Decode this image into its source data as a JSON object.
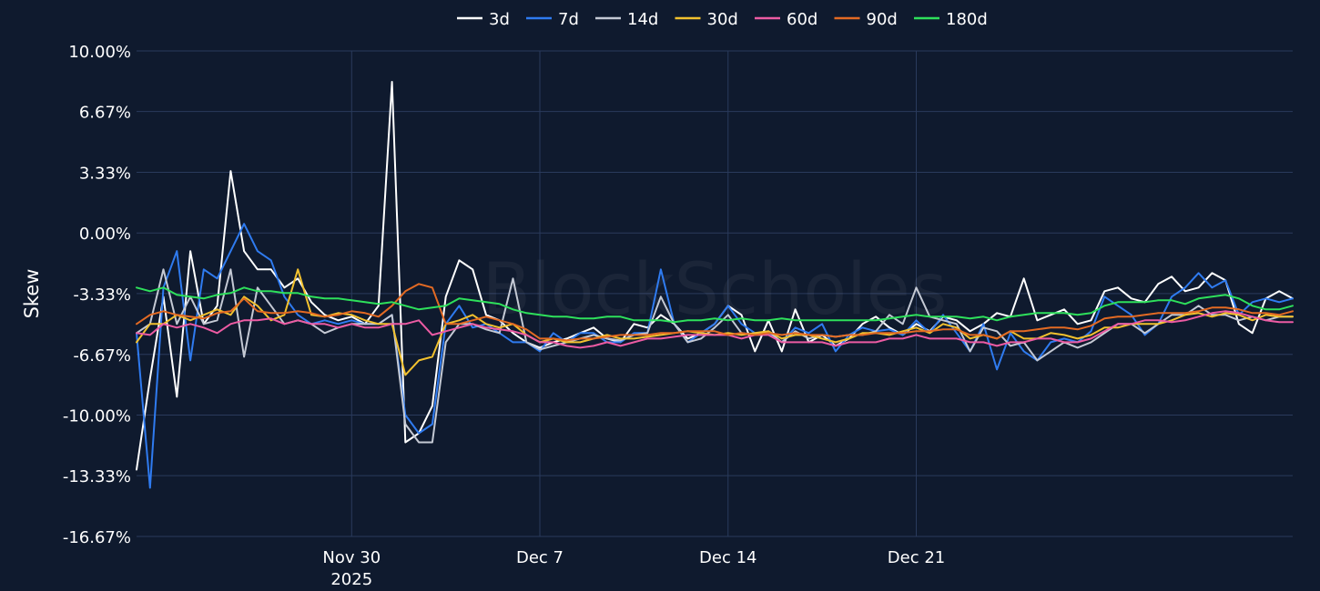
{
  "chart_data": {
    "type": "line",
    "title": "",
    "xlabel": "",
    "ylabel": "Skew",
    "watermark": "BlockScholes",
    "ylim": [
      -16.67,
      10.0
    ],
    "yticks": [
      {
        "value": 10.0,
        "label": "10.00%"
      },
      {
        "value": 6.67,
        "label": "6.67%"
      },
      {
        "value": 3.33,
        "label": "3.33%"
      },
      {
        "value": 0.0,
        "label": "0.00%"
      },
      {
        "value": -3.33,
        "label": "-3.33%"
      },
      {
        "value": -6.67,
        "label": "-6.67%"
      },
      {
        "value": -10.0,
        "label": "-10.00%"
      },
      {
        "value": -13.33,
        "label": "-13.33%"
      },
      {
        "value": -16.67,
        "label": "-16.67%"
      }
    ],
    "xlim_days": [
      -8,
      35
    ],
    "xticks": [
      {
        "day": 0,
        "label": "Nov 30",
        "sublabel": "2025"
      },
      {
        "day": 7,
        "label": "Dec 7",
        "sublabel": ""
      },
      {
        "day": 14,
        "label": "Dec 14",
        "sublabel": ""
      },
      {
        "day": 21,
        "label": "Dec 21",
        "sublabel": ""
      }
    ],
    "x_days": [
      -8,
      -7.5,
      -7,
      -6.5,
      -6,
      -5.5,
      -5,
      -4.5,
      -4,
      -3.5,
      -3,
      -2.5,
      -2,
      -1.5,
      -1,
      -0.5,
      0,
      0.5,
      1,
      1.5,
      2,
      2.5,
      3,
      3.5,
      4,
      4.5,
      5,
      5.5,
      6,
      6.5,
      7,
      7.5,
      8,
      8.5,
      9,
      9.5,
      10,
      10.5,
      11,
      11.5,
      12,
      12.5,
      13,
      13.5,
      14,
      14.5,
      15,
      15.5,
      16,
      16.5,
      17,
      17.5,
      18,
      18.5,
      19,
      19.5,
      20,
      20.5,
      21,
      21.5,
      22,
      22.5,
      23,
      23.5,
      24,
      24.5,
      25,
      25.5,
      26,
      26.5,
      27,
      27.5,
      28,
      28.5,
      29,
      29.5,
      30,
      30.5,
      31,
      31.5,
      32,
      32.5,
      33,
      33.5,
      34,
      34.5,
      35
    ],
    "series": [
      {
        "name": "3d",
        "color": "#ffffff",
        "values": [
          -13.0,
          -8.0,
          -3.5,
          -9.0,
          -1.0,
          -5.0,
          -4.0,
          3.4,
          -1.0,
          -2.0,
          -2.0,
          -3.0,
          -2.5,
          -3.8,
          -4.5,
          -4.8,
          -4.6,
          -5.0,
          -4.0,
          8.3,
          -11.5,
          -11.0,
          -9.5,
          -3.5,
          -1.5,
          -2.0,
          -4.5,
          -4.8,
          -5.5,
          -6.0,
          -6.3,
          -6.0,
          -5.8,
          -5.5,
          -5.2,
          -5.8,
          -6.0,
          -5.0,
          -5.2,
          -4.5,
          -5.0,
          -5.8,
          -5.5,
          -5.0,
          -4.0,
          -4.5,
          -6.5,
          -4.8,
          -6.5,
          -4.2,
          -6.0,
          -5.6,
          -6.2,
          -5.8,
          -5.0,
          -4.6,
          -5.2,
          -5.6,
          -5.0,
          -5.4,
          -4.6,
          -4.8,
          -5.4,
          -5.0,
          -4.4,
          -4.6,
          -2.5,
          -4.8,
          -4.5,
          -4.2,
          -5.0,
          -4.8,
          -3.2,
          -3.0,
          -3.6,
          -3.8,
          -2.8,
          -2.4,
          -3.2,
          -3.0,
          -2.2,
          -2.6,
          -5.0,
          -5.5,
          -3.6,
          -3.2,
          -3.6
        ]
      },
      {
        "name": "7d",
        "color": "#2f7bf0",
        "values": [
          -5.5,
          -14.0,
          -3.0,
          -1.0,
          -7.0,
          -2.0,
          -2.5,
          -1.0,
          0.5,
          -1.0,
          -1.5,
          -3.5,
          -4.5,
          -5.0,
          -4.8,
          -5.0,
          -4.8,
          -5.0,
          -5.0,
          -4.5,
          -10.0,
          -11.0,
          -10.5,
          -5.0,
          -4.0,
          -5.2,
          -5.0,
          -5.5,
          -6.0,
          -6.0,
          -6.5,
          -5.5,
          -6.0,
          -5.5,
          -5.5,
          -6.0,
          -6.0,
          -5.5,
          -5.5,
          -2.0,
          -5.0,
          -6.0,
          -5.5,
          -5.0,
          -4.0,
          -5.0,
          -5.5,
          -5.5,
          -6.0,
          -5.2,
          -5.5,
          -5.0,
          -6.5,
          -5.6,
          -5.2,
          -5.4,
          -5.3,
          -5.6,
          -4.8,
          -5.5,
          -4.5,
          -5.5,
          -6.5,
          -5.0,
          -7.5,
          -5.5,
          -6.5,
          -7.0,
          -6.0,
          -5.8,
          -6.0,
          -5.4,
          -3.5,
          -4.0,
          -4.5,
          -5.6,
          -5.0,
          -3.5,
          -3.0,
          -2.2,
          -3.0,
          -2.6,
          -4.5,
          -3.8,
          -3.6,
          -3.8,
          -3.6
        ]
      },
      {
        "name": "14d",
        "color": "#c4c9d4",
        "values": [
          -5.5,
          -5.0,
          -2.0,
          -5.0,
          -3.5,
          -5.0,
          -4.8,
          -2.0,
          -6.8,
          -3.0,
          -4.0,
          -5.0,
          -4.8,
          -5.0,
          -5.5,
          -5.2,
          -5.0,
          -5.0,
          -5.0,
          -4.5,
          -10.5,
          -11.5,
          -11.5,
          -6.0,
          -5.0,
          -5.0,
          -5.3,
          -5.5,
          -2.5,
          -6.0,
          -6.4,
          -6.2,
          -6.0,
          -5.8,
          -5.6,
          -5.8,
          -5.9,
          -5.6,
          -5.5,
          -3.5,
          -5.0,
          -6.0,
          -5.8,
          -5.2,
          -4.5,
          -5.5,
          -5.6,
          -5.4,
          -6.0,
          -5.4,
          -5.8,
          -5.6,
          -5.7,
          -5.6,
          -5.6,
          -5.4,
          -4.5,
          -5.0,
          -3.0,
          -4.6,
          -4.8,
          -5.0,
          -6.5,
          -5.2,
          -5.4,
          -6.2,
          -6.0,
          -7.0,
          -6.5,
          -6.0,
          -6.3,
          -6.0,
          -5.5,
          -5.0,
          -5.0,
          -5.5,
          -5.0,
          -4.5,
          -4.5,
          -4.0,
          -4.5,
          -4.5,
          -4.8,
          -4.6,
          -4.8,
          -4.6,
          -4.6
        ]
      },
      {
        "name": "30d",
        "color": "#f2c12e",
        "values": [
          -6.0,
          -5.0,
          -5.0,
          -4.5,
          -4.8,
          -4.5,
          -4.2,
          -4.5,
          -3.5,
          -4.0,
          -4.8,
          -4.5,
          -2.0,
          -4.5,
          -4.6,
          -4.4,
          -4.5,
          -4.8,
          -5.0,
          -5.0,
          -7.8,
          -7.0,
          -6.8,
          -5.0,
          -4.8,
          -4.5,
          -5.0,
          -5.2,
          -5.0,
          -5.6,
          -6.0,
          -5.8,
          -6.0,
          -6.0,
          -5.8,
          -5.6,
          -5.8,
          -5.8,
          -5.7,
          -5.6,
          -5.5,
          -5.4,
          -5.5,
          -5.6,
          -5.5,
          -5.6,
          -5.5,
          -5.4,
          -5.8,
          -5.6,
          -5.6,
          -5.8,
          -6.0,
          -5.8,
          -5.5,
          -5.5,
          -5.6,
          -5.4,
          -5.2,
          -5.5,
          -5.0,
          -5.2,
          -5.8,
          -5.6,
          -5.8,
          -5.4,
          -5.8,
          -5.8,
          -5.5,
          -5.6,
          -5.8,
          -5.6,
          -5.2,
          -5.2,
          -5.0,
          -5.0,
          -5.0,
          -4.8,
          -4.5,
          -4.4,
          -4.6,
          -4.4,
          -4.5,
          -4.8,
          -4.5,
          -4.6,
          -4.6
        ]
      },
      {
        "name": "60d",
        "color": "#ec5ba3",
        "values": [
          -5.5,
          -5.6,
          -5.0,
          -5.2,
          -5.0,
          -5.2,
          -5.5,
          -5.0,
          -4.8,
          -4.8,
          -4.7,
          -5.0,
          -4.8,
          -5.0,
          -5.0,
          -5.2,
          -5.0,
          -5.2,
          -5.2,
          -5.0,
          -5.0,
          -4.8,
          -5.6,
          -5.4,
          -5.2,
          -5.0,
          -5.2,
          -5.3,
          -5.4,
          -5.6,
          -6.0,
          -6.0,
          -6.2,
          -6.3,
          -6.2,
          -6.0,
          -6.2,
          -6.0,
          -5.8,
          -5.8,
          -5.7,
          -5.6,
          -5.6,
          -5.6,
          -5.6,
          -5.8,
          -5.6,
          -5.6,
          -6.0,
          -6.0,
          -6.0,
          -6.0,
          -6.2,
          -6.0,
          -6.0,
          -6.0,
          -5.8,
          -5.8,
          -5.6,
          -5.8,
          -5.8,
          -5.8,
          -6.0,
          -6.0,
          -6.2,
          -6.0,
          -6.0,
          -5.8,
          -5.8,
          -6.0,
          -6.0,
          -5.8,
          -5.4,
          -5.0,
          -5.0,
          -4.8,
          -4.8,
          -4.9,
          -4.8,
          -4.6,
          -4.4,
          -4.3,
          -4.4,
          -4.6,
          -4.8,
          -4.9,
          -4.9
        ]
      },
      {
        "name": "90d",
        "color": "#e36a23",
        "values": [
          -5.0,
          -4.5,
          -4.3,
          -4.5,
          -4.6,
          -4.7,
          -4.4,
          -4.3,
          -3.6,
          -4.3,
          -4.4,
          -4.4,
          -4.3,
          -4.4,
          -4.6,
          -4.5,
          -4.3,
          -4.4,
          -4.6,
          -4.0,
          -3.2,
          -2.8,
          -3.0,
          -5.0,
          -5.0,
          -4.8,
          -4.6,
          -4.8,
          -5.0,
          -5.3,
          -5.8,
          -5.8,
          -5.9,
          -5.8,
          -5.8,
          -5.7,
          -5.6,
          -5.6,
          -5.6,
          -5.5,
          -5.5,
          -5.4,
          -5.4,
          -5.4,
          -5.6,
          -5.5,
          -5.6,
          -5.5,
          -5.6,
          -5.5,
          -5.6,
          -5.6,
          -5.7,
          -5.6,
          -5.6,
          -5.5,
          -5.5,
          -5.5,
          -5.4,
          -5.4,
          -5.3,
          -5.3,
          -5.6,
          -5.6,
          -5.8,
          -5.4,
          -5.4,
          -5.3,
          -5.2,
          -5.2,
          -5.3,
          -5.1,
          -4.7,
          -4.6,
          -4.6,
          -4.5,
          -4.4,
          -4.4,
          -4.4,
          -4.3,
          -4.1,
          -4.1,
          -4.2,
          -4.4,
          -4.4,
          -4.5,
          -4.3
        ]
      },
      {
        "name": "180d",
        "color": "#2ee05b",
        "values": [
          -3.0,
          -3.2,
          -3.0,
          -3.4,
          -3.5,
          -3.6,
          -3.4,
          -3.3,
          -3.0,
          -3.2,
          -3.2,
          -3.3,
          -3.3,
          -3.5,
          -3.6,
          -3.6,
          -3.7,
          -3.8,
          -3.9,
          -3.8,
          -4.0,
          -4.2,
          -4.1,
          -4.0,
          -3.6,
          -3.7,
          -3.8,
          -3.9,
          -4.2,
          -4.4,
          -4.5,
          -4.6,
          -4.6,
          -4.7,
          -4.7,
          -4.6,
          -4.6,
          -4.8,
          -4.8,
          -4.8,
          -4.9,
          -4.8,
          -4.8,
          -4.7,
          -4.8,
          -4.7,
          -4.8,
          -4.8,
          -4.7,
          -4.8,
          -4.8,
          -4.8,
          -4.8,
          -4.8,
          -4.8,
          -4.8,
          -4.7,
          -4.6,
          -4.5,
          -4.6,
          -4.6,
          -4.6,
          -4.7,
          -4.6,
          -4.8,
          -4.6,
          -4.5,
          -4.4,
          -4.4,
          -4.4,
          -4.5,
          -4.4,
          -4.0,
          -3.8,
          -3.8,
          -3.8,
          -3.7,
          -3.7,
          -3.9,
          -3.6,
          -3.5,
          -3.4,
          -3.6,
          -4.0,
          -4.2,
          -4.2,
          -4.0
        ]
      }
    ]
  }
}
